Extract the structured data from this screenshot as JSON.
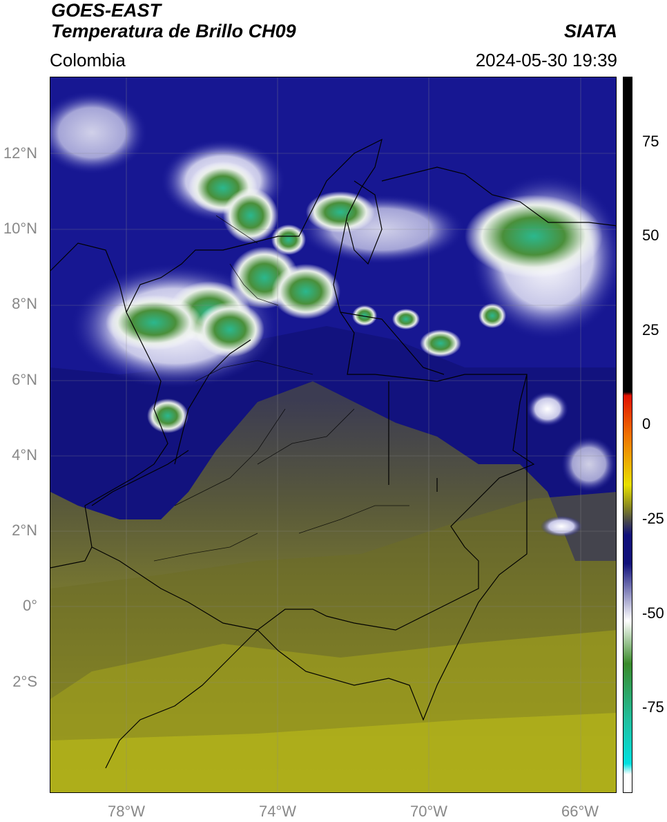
{
  "header": {
    "title_line1": "GOES-EAST",
    "title_line2": "Temperatura de Brillo CH09",
    "organization": "SIATA",
    "region": "Colombia",
    "timestamp": "2024-05-30 19:39"
  },
  "map": {
    "lat_ticks": [
      "12°N",
      "10°N",
      "8°N",
      "6°N",
      "4°N",
      "2°N",
      "0°",
      "2°S"
    ],
    "lon_ticks": [
      "78°W",
      "74°W",
      "70°W",
      "66°W"
    ]
  },
  "colorbar": {
    "ticks": [
      "75",
      "50",
      "25",
      "0",
      "-25",
      "-50",
      "-75"
    ],
    "colors": {
      "black": "#000000",
      "red": "#e01000",
      "orange": "#f07000",
      "yellow": "#e8e000",
      "olive": "#8a8a20",
      "gray": "#4a4a4a",
      "navy": "#10107a",
      "white": "#ffffff",
      "green": "#3a8a2a",
      "teal": "#20c0a0",
      "cyan": "#00e0e0"
    }
  }
}
